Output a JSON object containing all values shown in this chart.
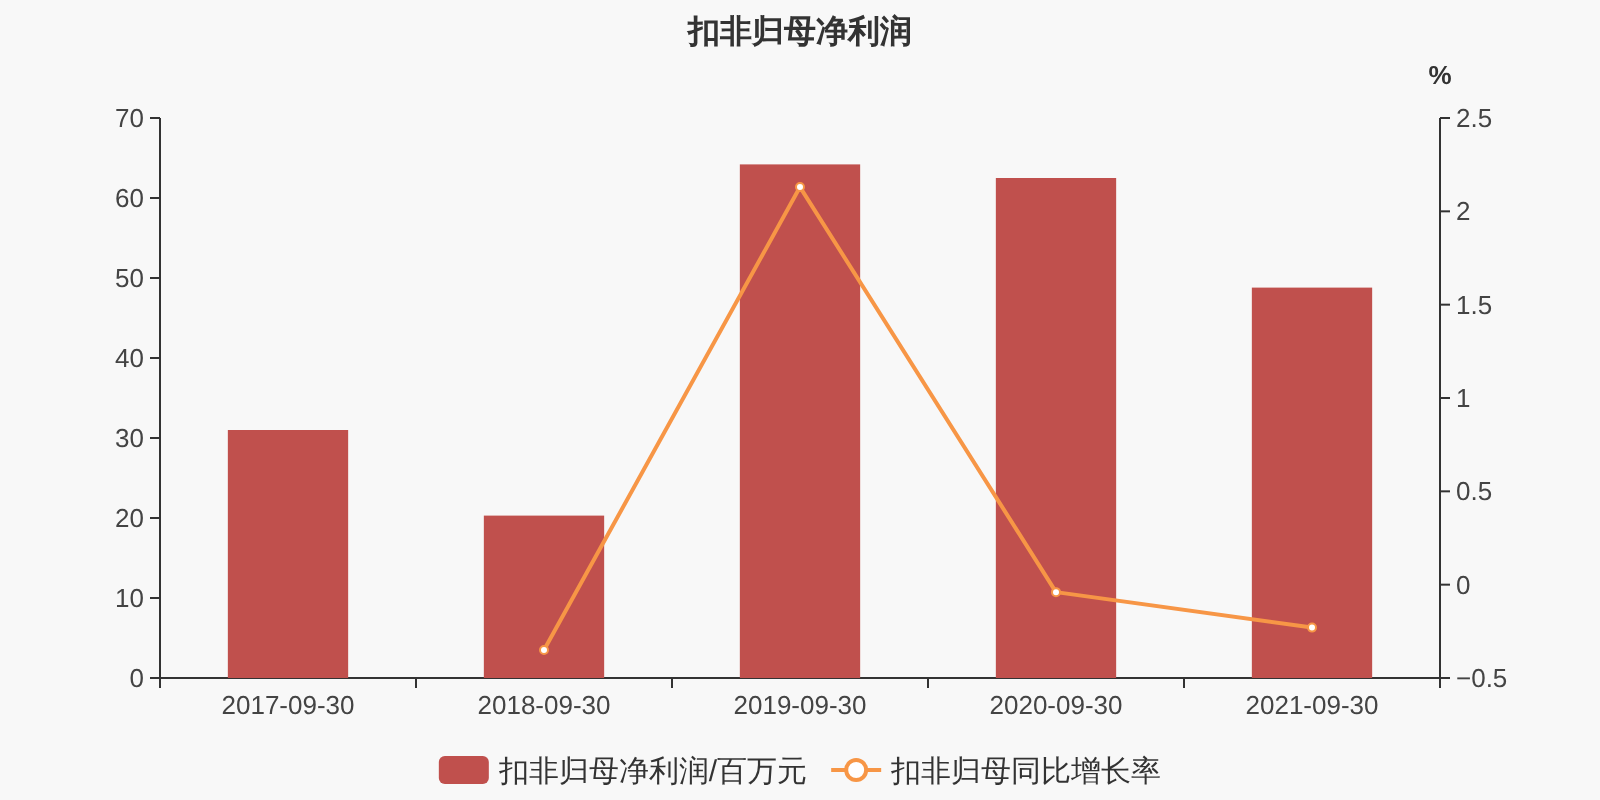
{
  "chart_data": {
    "type": "bar",
    "title": "扣非归母净利润",
    "categories": [
      "2017-09-30",
      "2018-09-30",
      "2019-09-30",
      "2020-09-30",
      "2021-09-30"
    ],
    "series": [
      {
        "name": "扣非归母净利润/百万元",
        "color": "#c0504d",
        "values": [
          31.0,
          20.3,
          64.2,
          62.5,
          48.8
        ]
      },
      {
        "name": "扣非归母同比增长率",
        "type": "line",
        "axis": "y2",
        "color": "#f79646",
        "marker": "circle",
        "values": [
          null,
          -0.35,
          2.13,
          -0.04,
          -0.23
        ]
      }
    ],
    "ylim": [
      0,
      70
    ],
    "yticks": [
      0,
      10,
      20,
      30,
      40,
      50,
      60,
      70
    ],
    "y2label": "%",
    "y2lim": [
      -0.5,
      2.5
    ],
    "y2ticks": [
      -0.5,
      0,
      0.5,
      1,
      1.5,
      2,
      2.5
    ],
    "grid": false,
    "legend": "bottom"
  }
}
